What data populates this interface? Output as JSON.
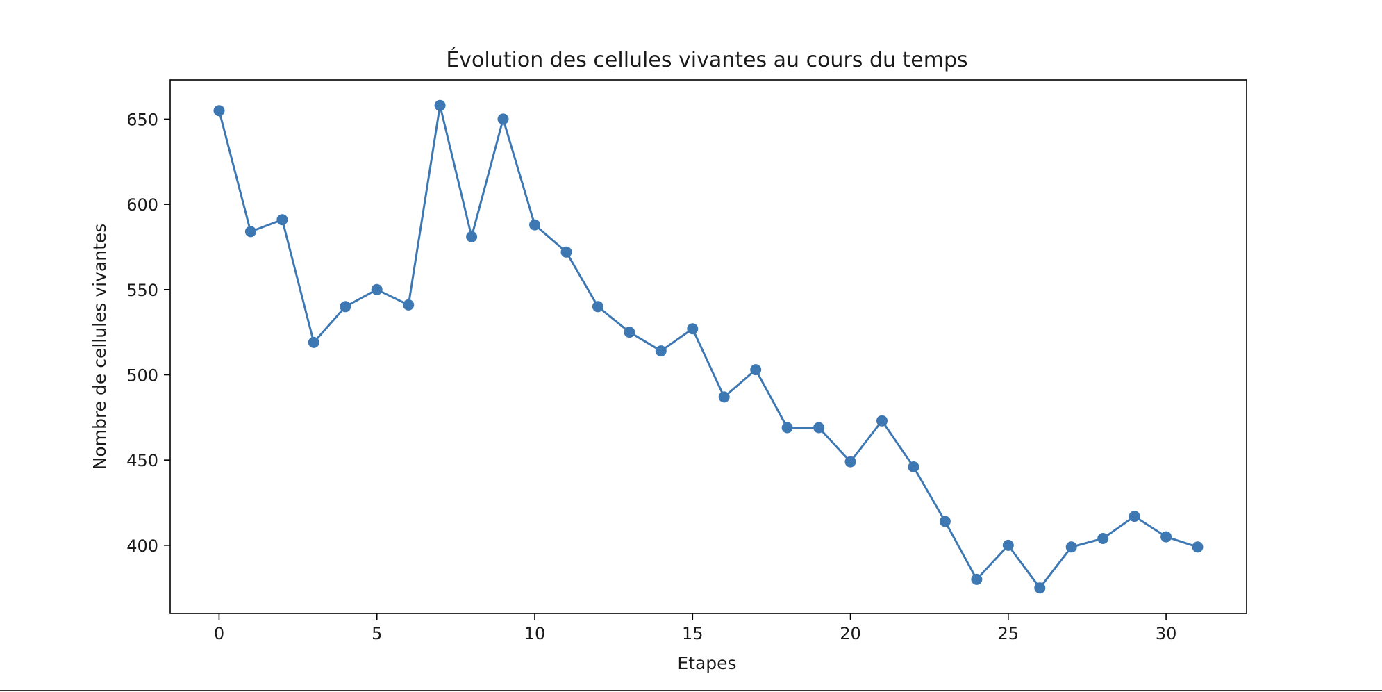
{
  "chart_data": {
    "type": "line",
    "title": "Évolution des cellules vivantes au cours du temps",
    "xlabel": "Etapes",
    "ylabel": "Nombre de cellules vivantes",
    "xlim": [
      -1.55,
      32.55
    ],
    "ylim": [
      360,
      673
    ],
    "xticks": [
      0,
      5,
      10,
      15,
      20,
      25,
      30
    ],
    "yticks": [
      400,
      450,
      500,
      550,
      600,
      650
    ],
    "grid": false,
    "marker": "circle",
    "colors": {
      "line": "#3e78b3",
      "marker": "#3e78b3",
      "frame": "#000000"
    },
    "series": [
      {
        "x": [
          0,
          1,
          2,
          3,
          4,
          5,
          6,
          7,
          8,
          9,
          10,
          11,
          12,
          13,
          14,
          15,
          16,
          17,
          18,
          19,
          20,
          21,
          22,
          23,
          24,
          25,
          26,
          27,
          28,
          29,
          30,
          31
        ],
        "values": [
          655,
          584,
          591,
          519,
          540,
          550,
          541,
          658,
          581,
          650,
          588,
          572,
          540,
          525,
          514,
          527,
          487,
          503,
          469,
          469,
          449,
          473,
          446,
          414,
          380,
          400,
          375,
          399,
          404,
          417,
          405,
          399
        ]
      }
    ]
  }
}
